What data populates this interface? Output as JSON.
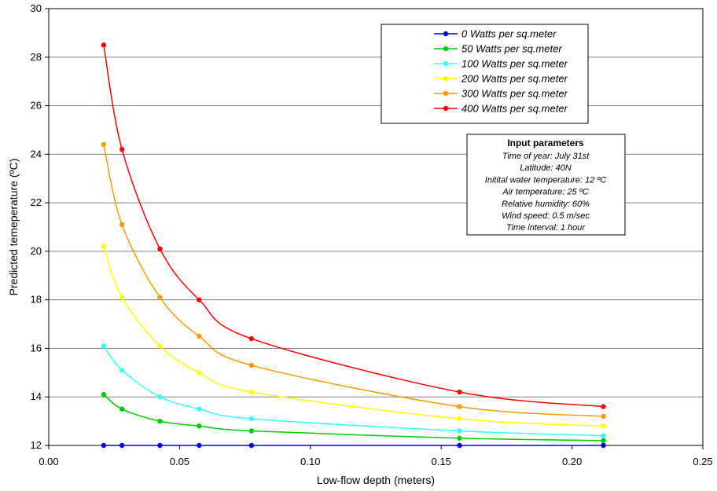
{
  "chart_data": {
    "type": "line",
    "xlabel": "Low-flow depth (meters)",
    "ylabel": "Predicted temeperature (ºC)",
    "xlim": [
      0,
      0.25
    ],
    "ylim": [
      12,
      30
    ],
    "xticks": [
      "0.00",
      "0.05",
      "0.10",
      "0.15",
      "0.20",
      "0.25"
    ],
    "yticks": [
      "12",
      "14",
      "16",
      "18",
      "20",
      "22",
      "24",
      "26",
      "28",
      "30"
    ],
    "grid": "horizontal",
    "legend_position": "top-right",
    "x": [
      0.021,
      0.028,
      0.0425,
      0.0575,
      0.0775,
      0.157,
      0.212
    ],
    "series": [
      {
        "name": "0 Watts per sq.meter",
        "color": "#0000ff",
        "values": [
          12.0,
          12.0,
          12.0,
          12.0,
          12.0,
          12.0,
          12.0
        ]
      },
      {
        "name": "50 Watts per sq.meter",
        "color": "#00cc00",
        "values": [
          14.1,
          13.5,
          13.0,
          12.8,
          12.6,
          12.3,
          12.2
        ]
      },
      {
        "name": "100 Watts per sq.meter",
        "color": "#33ffff",
        "values": [
          16.1,
          15.1,
          14.0,
          13.5,
          13.1,
          12.6,
          12.4
        ]
      },
      {
        "name": "200 Watts per sq.meter",
        "color": "#ffff00",
        "values": [
          20.2,
          18.1,
          16.1,
          15.0,
          14.2,
          13.1,
          12.8
        ]
      },
      {
        "name": "300 Watts per sq.meter",
        "color": "#ff9900",
        "values": [
          24.4,
          21.1,
          18.1,
          16.5,
          15.3,
          13.6,
          13.2
        ]
      },
      {
        "name": "400 Watts per sq.meter",
        "color": "#ff0000",
        "values": [
          28.5,
          24.2,
          20.1,
          18.0,
          16.4,
          14.2,
          13.6
        ]
      }
    ],
    "annotation": {
      "title": "Input parameters",
      "lines": [
        "Time of year: July 31st",
        "Latitude: 40N",
        "Initital water temperature: 12 ºC",
        "Air temperature: 25 ºC",
        "Relative humidity: 60%",
        "Wind speed: 0.5 m/sec",
        "Time interval: 1 hour"
      ]
    }
  }
}
